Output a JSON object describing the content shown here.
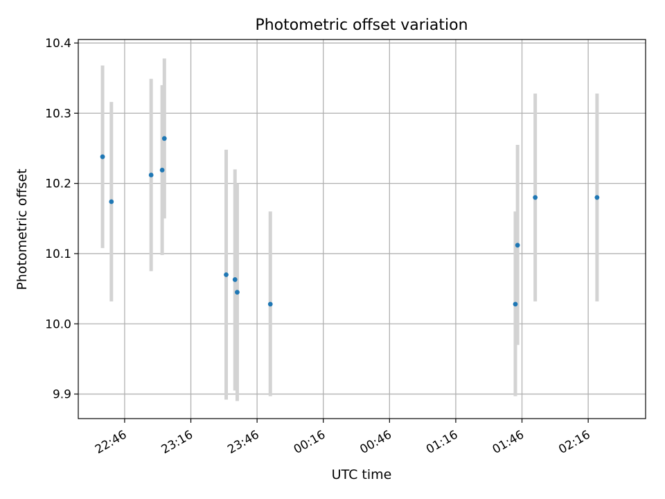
{
  "chart_data": {
    "type": "scatter",
    "title": "Photometric offset variation",
    "xlabel": "UTC time",
    "ylabel": "Photometric offset",
    "x_unit": "UTC time (HH:MM); after midnight times continue past 24:00",
    "xlim": [
      "22:25",
      "02:42"
    ],
    "ylim": [
      9.865,
      10.405
    ],
    "x_ticks": [
      "22:46",
      "23:16",
      "23:46",
      "00:16",
      "00:46",
      "01:16",
      "01:46",
      "02:16"
    ],
    "y_ticks": [
      "9.9",
      "10.0",
      "10.1",
      "10.2",
      "10.3",
      "10.4"
    ],
    "y_tick_values": [
      9.9,
      10.0,
      10.1,
      10.2,
      10.3,
      10.4
    ],
    "grid": true,
    "colors": {
      "points": "#1f77b4",
      "errorbars": "#d3d3d3",
      "grid": "#b0b0b0"
    },
    "points": [
      {
        "time": "22:36",
        "offset": 10.238,
        "err_low": 10.108,
        "err_high": 10.368
      },
      {
        "time": "22:40",
        "offset": 10.174,
        "err_low": 10.032,
        "err_high": 10.316
      },
      {
        "time": "22:58",
        "offset": 10.212,
        "err_low": 10.075,
        "err_high": 10.349
      },
      {
        "time": "23:03",
        "offset": 10.219,
        "err_low": 10.098,
        "err_high": 10.34
      },
      {
        "time": "23:04",
        "offset": 10.264,
        "err_low": 10.15,
        "err_high": 10.378
      },
      {
        "time": "23:32",
        "offset": 10.07,
        "err_low": 9.892,
        "err_high": 10.248
      },
      {
        "time": "23:36",
        "offset": 10.063,
        "err_low": 9.905,
        "err_high": 10.22
      },
      {
        "time": "23:37",
        "offset": 10.045,
        "err_low": 9.89,
        "err_high": 10.2
      },
      {
        "time": "23:52",
        "offset": 10.028,
        "err_low": 9.897,
        "err_high": 10.16
      },
      {
        "time": "01:43",
        "offset": 10.028,
        "err_low": 9.897,
        "err_high": 10.16
      },
      {
        "time": "01:44",
        "offset": 10.112,
        "err_low": 9.97,
        "err_high": 10.255
      },
      {
        "time": "01:52",
        "offset": 10.18,
        "err_low": 10.032,
        "err_high": 10.328
      },
      {
        "time": "02:20",
        "offset": 10.18,
        "err_low": 10.032,
        "err_high": 10.328
      }
    ]
  }
}
